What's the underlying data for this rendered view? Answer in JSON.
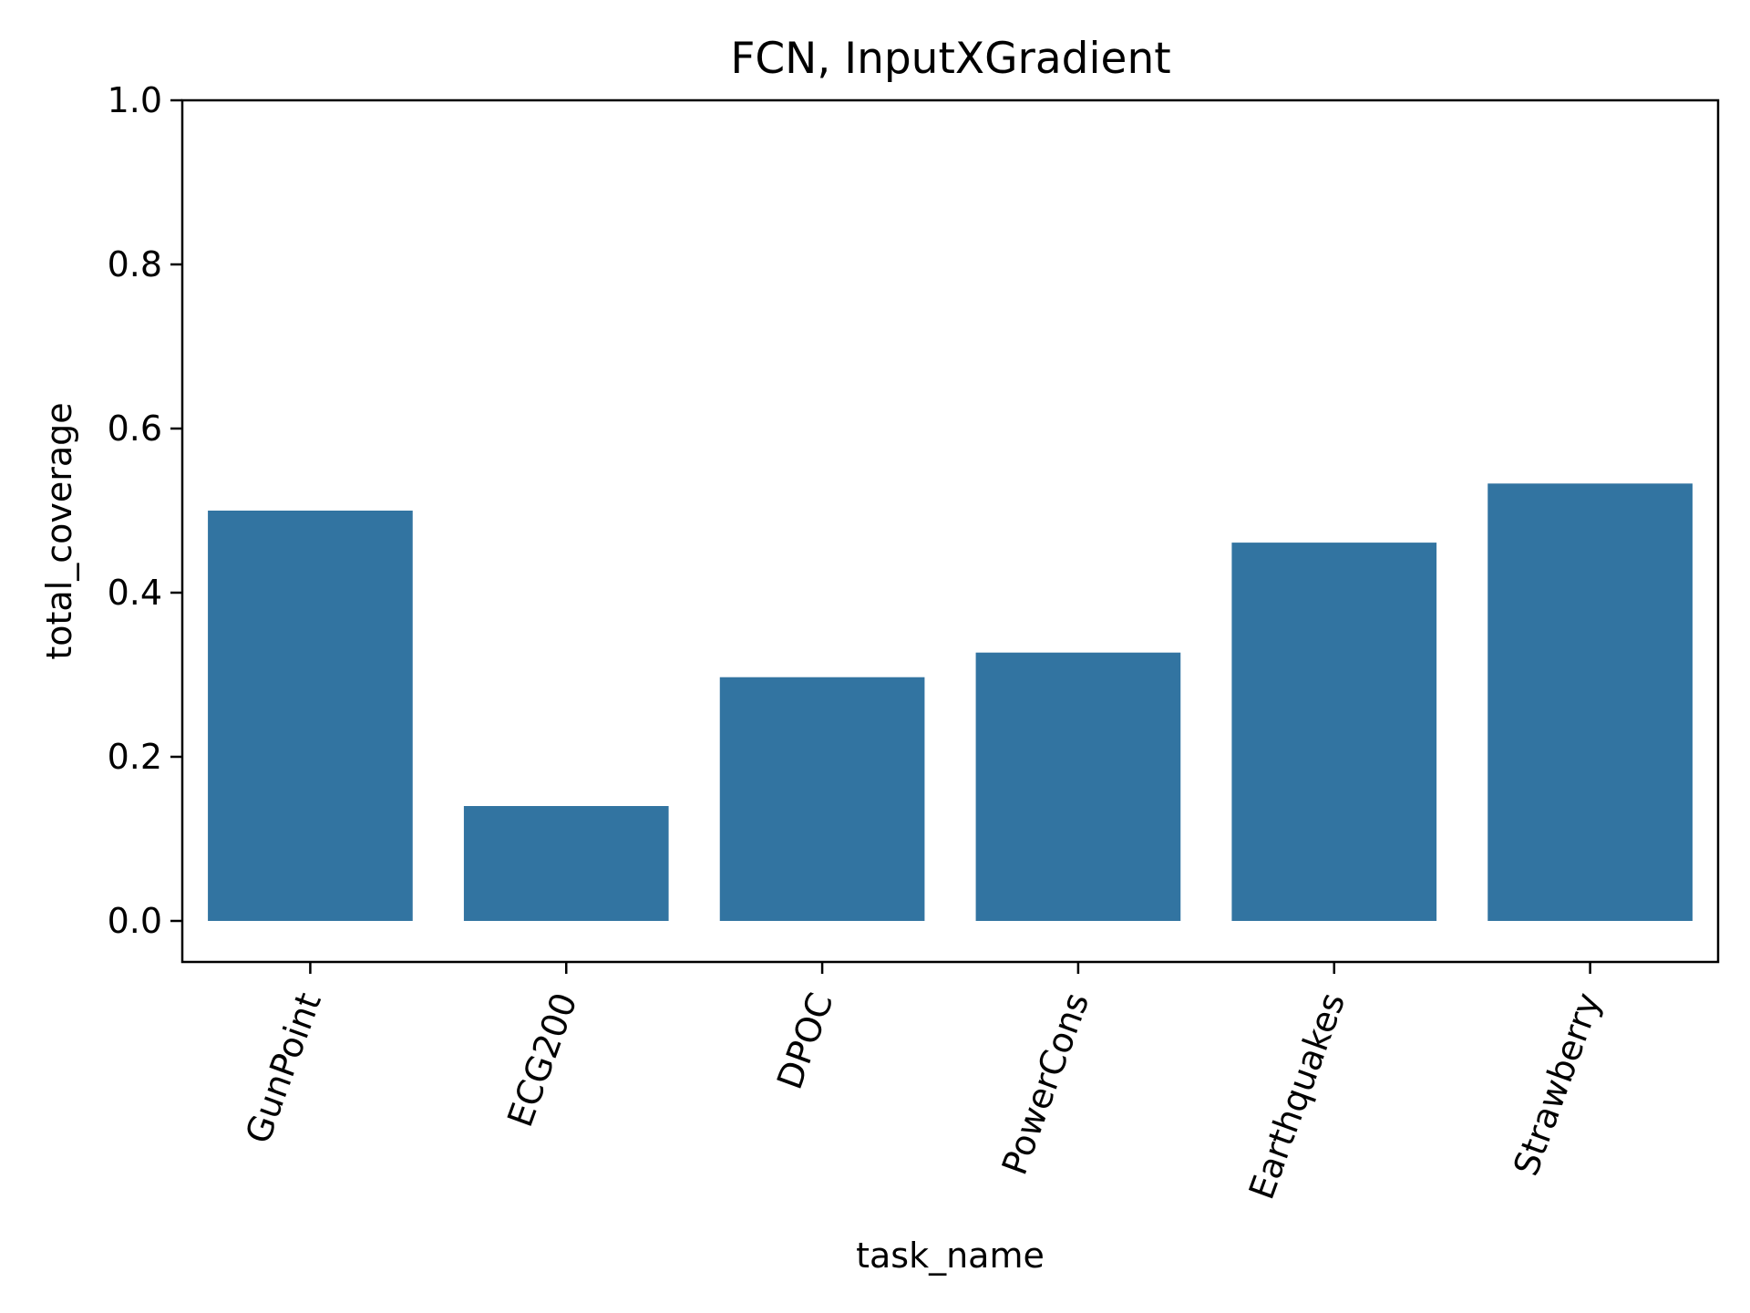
{
  "chart_data": {
    "type": "bar",
    "title": "FCN, InputXGradient",
    "xlabel": "task_name",
    "ylabel": "total_coverage",
    "categories": [
      "GunPoint",
      "ECG200",
      "DPOC",
      "PowerCons",
      "Earthquakes",
      "Strawberry"
    ],
    "values": [
      0.5,
      0.14,
      0.297,
      0.327,
      0.461,
      0.533
    ],
    "ylim": [
      -0.05,
      1.0
    ],
    "yticks": [
      0.0,
      0.2,
      0.4,
      0.6,
      0.8,
      1.0
    ],
    "ytick_labels": [
      "0.0",
      "0.2",
      "0.4",
      "0.6",
      "0.8",
      "1.0"
    ],
    "bar_color": "#3274a1",
    "grid": false,
    "legend": "none"
  }
}
